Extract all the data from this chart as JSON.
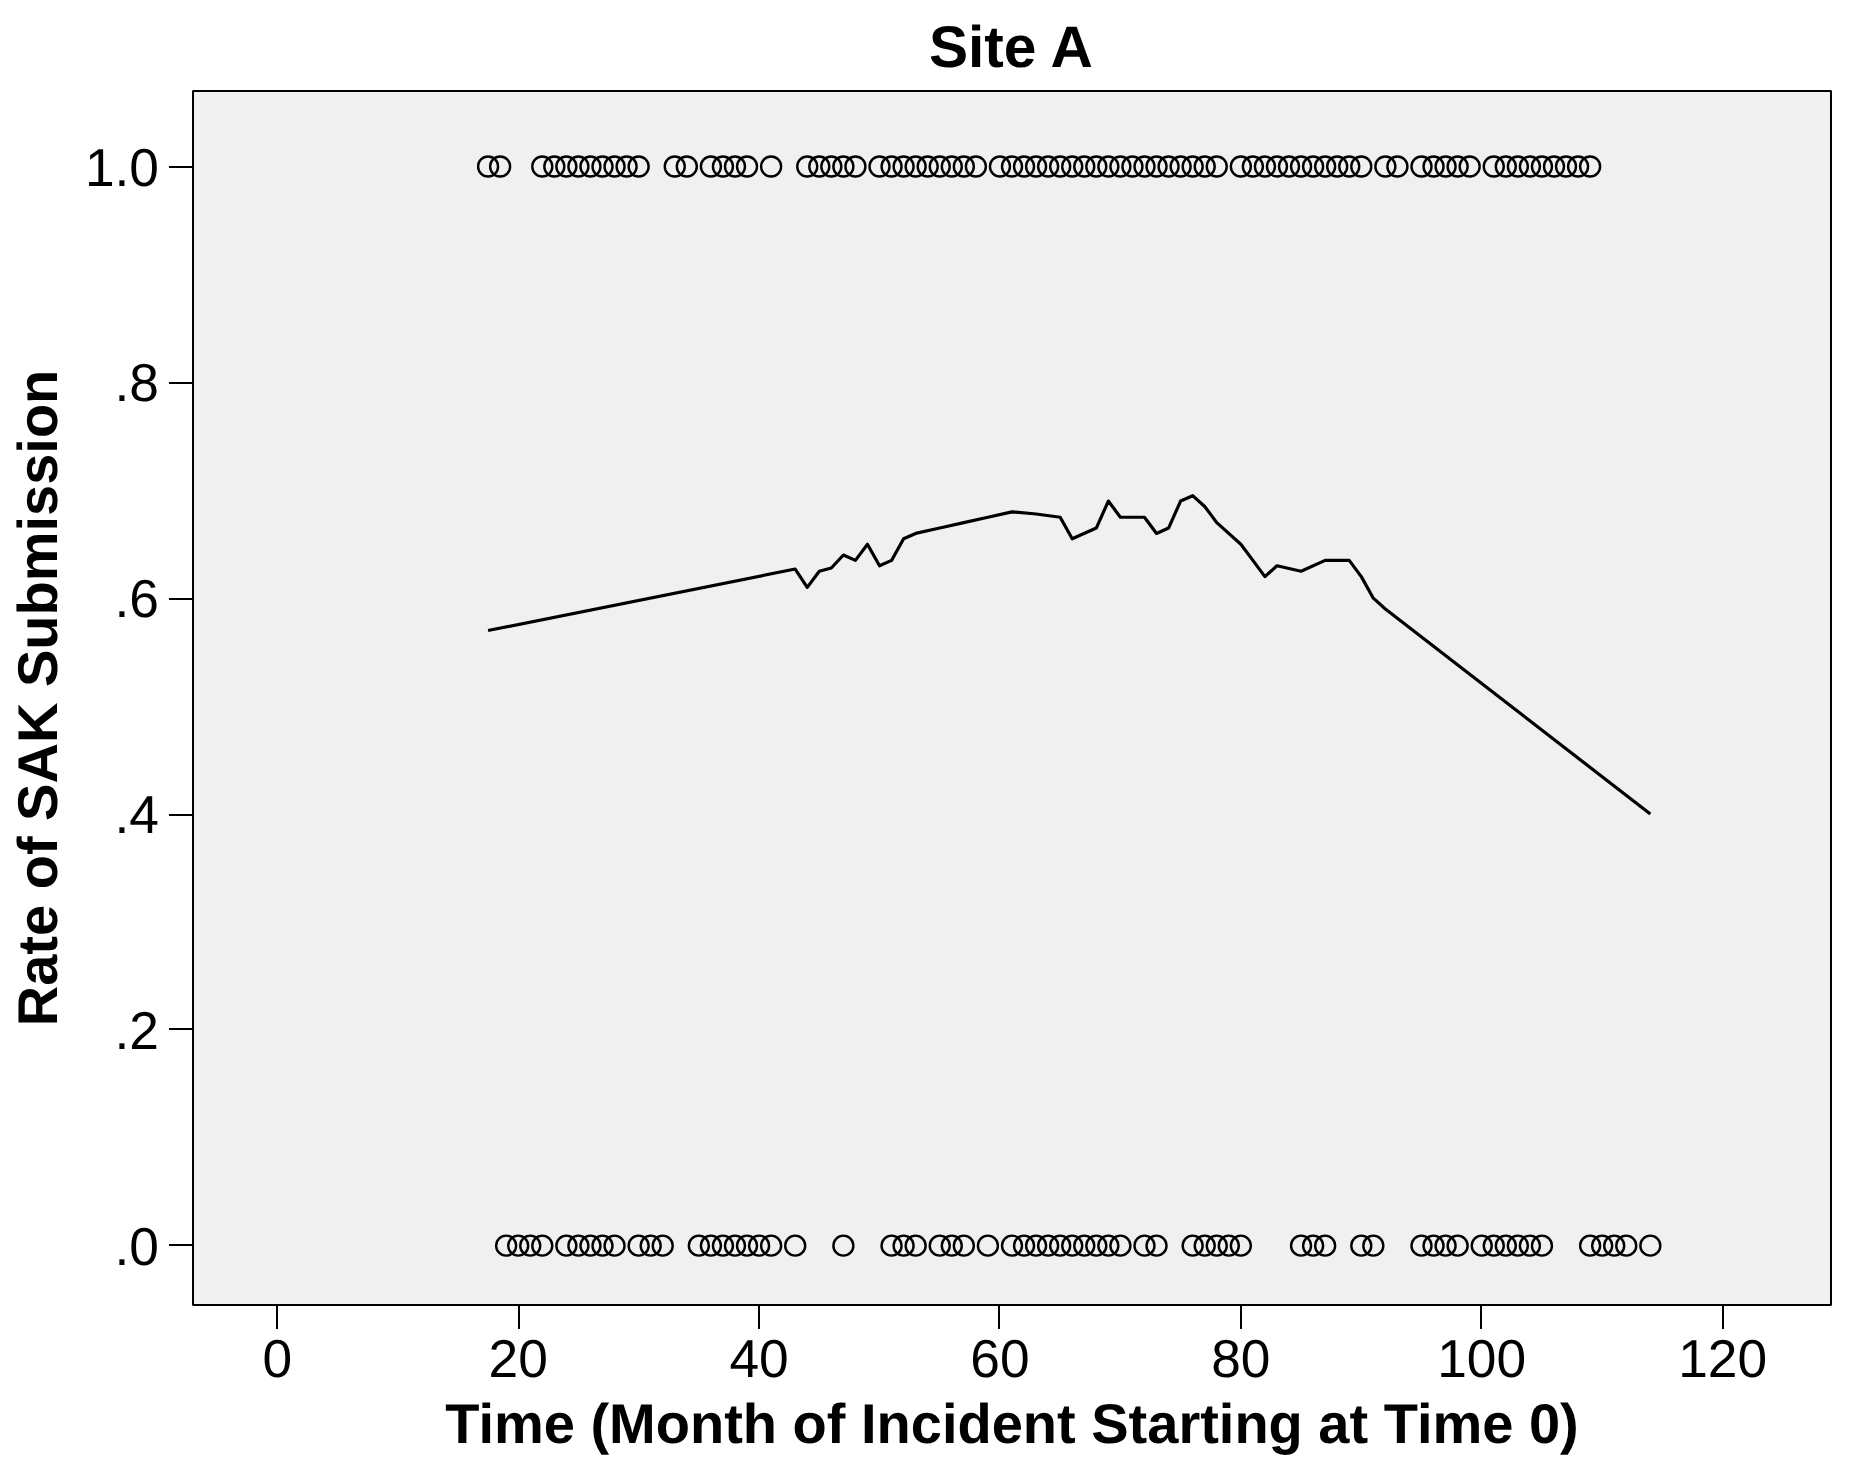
{
  "chart_data": {
    "type": "scatter",
    "title": "Site A",
    "xlabel": "Time (Month of Incident Starting at Time 0)",
    "ylabel": "Rate of SAK Submission",
    "xlim": [
      -7,
      129
    ],
    "xticks": [
      0,
      20,
      40,
      60,
      80,
      100,
      120
    ],
    "ylim": [
      -0.055,
      1.07
    ],
    "yticks": [
      {
        "value": 0,
        "label": ".0"
      },
      {
        "value": 0.2,
        "label": ".2"
      },
      {
        "value": 0.4,
        "label": ".4"
      },
      {
        "value": 0.6,
        "label": ".6"
      },
      {
        "value": 0.8,
        "label": ".8"
      },
      {
        "value": 1.0,
        "label": "1.0"
      }
    ],
    "grid": false,
    "marker": "circle",
    "series": [
      {
        "color": "#000000",
        "x": [
          17.5,
          18.5,
          22,
          23,
          24,
          25,
          26,
          27,
          28,
          29,
          30,
          33,
          34,
          36,
          37,
          38,
          39,
          41,
          44,
          45,
          46,
          47,
          48,
          50,
          51,
          52,
          53,
          54,
          55,
          56,
          57,
          58,
          60,
          61,
          62,
          63,
          64,
          65,
          66,
          67,
          68,
          69,
          70,
          71,
          72,
          73,
          74,
          75,
          76,
          77,
          78,
          80,
          81,
          82,
          83,
          84,
          85,
          86,
          87,
          88,
          89,
          90,
          92,
          93,
          95,
          96,
          97,
          98,
          99,
          101,
          102,
          103,
          104,
          105,
          106,
          107,
          108,
          109
        ],
        "values": [
          1,
          1,
          1,
          1,
          1,
          1,
          1,
          1,
          1,
          1,
          1,
          1,
          1,
          1,
          1,
          1,
          1,
          1,
          1,
          1,
          1,
          1,
          1,
          1,
          1,
          1,
          1,
          1,
          1,
          1,
          1,
          1,
          1,
          1,
          1,
          1,
          1,
          1,
          1,
          1,
          1,
          1,
          1,
          1,
          1,
          1,
          1,
          1,
          1,
          1,
          1,
          1,
          1,
          1,
          1,
          1,
          1,
          1,
          1,
          1,
          1,
          1,
          1,
          1,
          1,
          1,
          1,
          1,
          1,
          1,
          1,
          1,
          1,
          1,
          1,
          1,
          1,
          1
        ]
      },
      {
        "color": "#000000",
        "x": [
          19,
          20,
          21,
          22,
          24,
          25,
          26,
          27,
          28,
          30,
          31,
          32,
          35,
          36,
          37,
          38,
          39,
          40,
          41,
          43,
          47,
          51,
          52,
          53,
          55,
          56,
          57,
          59,
          61,
          62,
          63,
          64,
          65,
          66,
          67,
          68,
          69,
          70,
          72,
          73,
          76,
          77,
          78,
          79,
          80,
          85,
          86,
          87,
          90,
          91,
          95,
          96,
          97,
          98,
          100,
          101,
          102,
          103,
          104,
          105,
          109,
          110,
          111,
          112,
          114
        ],
        "values": [
          0,
          0,
          0,
          0,
          0,
          0,
          0,
          0,
          0,
          0,
          0,
          0,
          0,
          0,
          0,
          0,
          0,
          0,
          0,
          0,
          0,
          0,
          0,
          0,
          0,
          0,
          0,
          0,
          0,
          0,
          0,
          0,
          0,
          0,
          0,
          0,
          0,
          0,
          0,
          0,
          0,
          0,
          0,
          0,
          0,
          0,
          0,
          0,
          0,
          0,
          0,
          0,
          0,
          0,
          0,
          0,
          0,
          0,
          0,
          0,
          0,
          0,
          0,
          0,
          0
        ]
      },
      {
        "type": "line",
        "color": "#000000",
        "marker": "none",
        "line_style": "solid",
        "x": [
          17.5,
          43,
          44,
          45,
          46,
          47,
          48,
          49,
          50,
          51,
          52,
          53,
          55,
          57,
          59,
          61,
          63,
          65,
          66,
          68,
          69,
          70,
          72,
          73,
          74,
          75,
          76,
          77,
          78,
          80,
          81,
          82,
          83,
          85,
          87,
          89,
          90,
          91,
          92,
          114
        ],
        "values": [
          0.57,
          0.627,
          0.61,
          0.625,
          0.628,
          0.64,
          0.635,
          0.65,
          0.63,
          0.635,
          0.655,
          0.66,
          0.665,
          0.67,
          0.675,
          0.68,
          0.678,
          0.675,
          0.655,
          0.665,
          0.69,
          0.675,
          0.675,
          0.66,
          0.665,
          0.69,
          0.695,
          0.685,
          0.67,
          0.65,
          0.635,
          0.62,
          0.63,
          0.625,
          0.635,
          0.635,
          0.62,
          0.6,
          0.59,
          0.4
        ]
      }
    ]
  }
}
